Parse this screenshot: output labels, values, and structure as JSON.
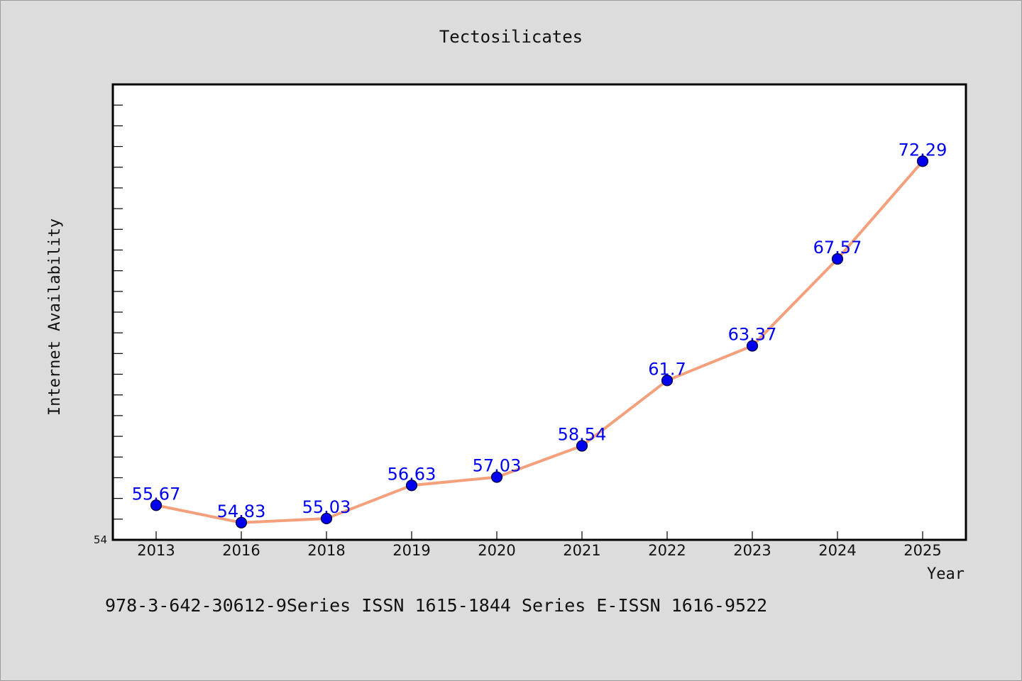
{
  "chart_data": {
    "type": "line",
    "title": "Tectosilicates",
    "xlabel": "Year",
    "ylabel": "Internet Availability",
    "categories": [
      "2013",
      "2016",
      "2018",
      "2019",
      "2020",
      "2021",
      "2022",
      "2023",
      "2024",
      "2025"
    ],
    "series": [
      {
        "values": [
          55.67,
          54.83,
          55.03,
          56.63,
          57.03,
          58.54,
          61.7,
          63.37,
          67.57,
          72.29
        ]
      }
    ],
    "data_labels": [
      "55.67",
      "54.83",
      "55.03",
      "56.63",
      "57.03",
      "58.54",
      "61.7",
      "63.37",
      "67.57",
      "72.29"
    ],
    "ylim": [
      54,
      76
    ],
    "yticks_labeled": [
      "54"
    ],
    "grid": false,
    "legend": "none",
    "colors": {
      "line": "#f4a07c",
      "marker": "#0000ee",
      "marker_edge": "#000033",
      "label": "#0000ee",
      "plot_bg": "#ffffff",
      "page_bg": "#dcdcdc"
    }
  },
  "footer": {
    "text": "978-3-642-30612-9Series ISSN 1615-1844 Series E-ISSN 1616-9522"
  }
}
